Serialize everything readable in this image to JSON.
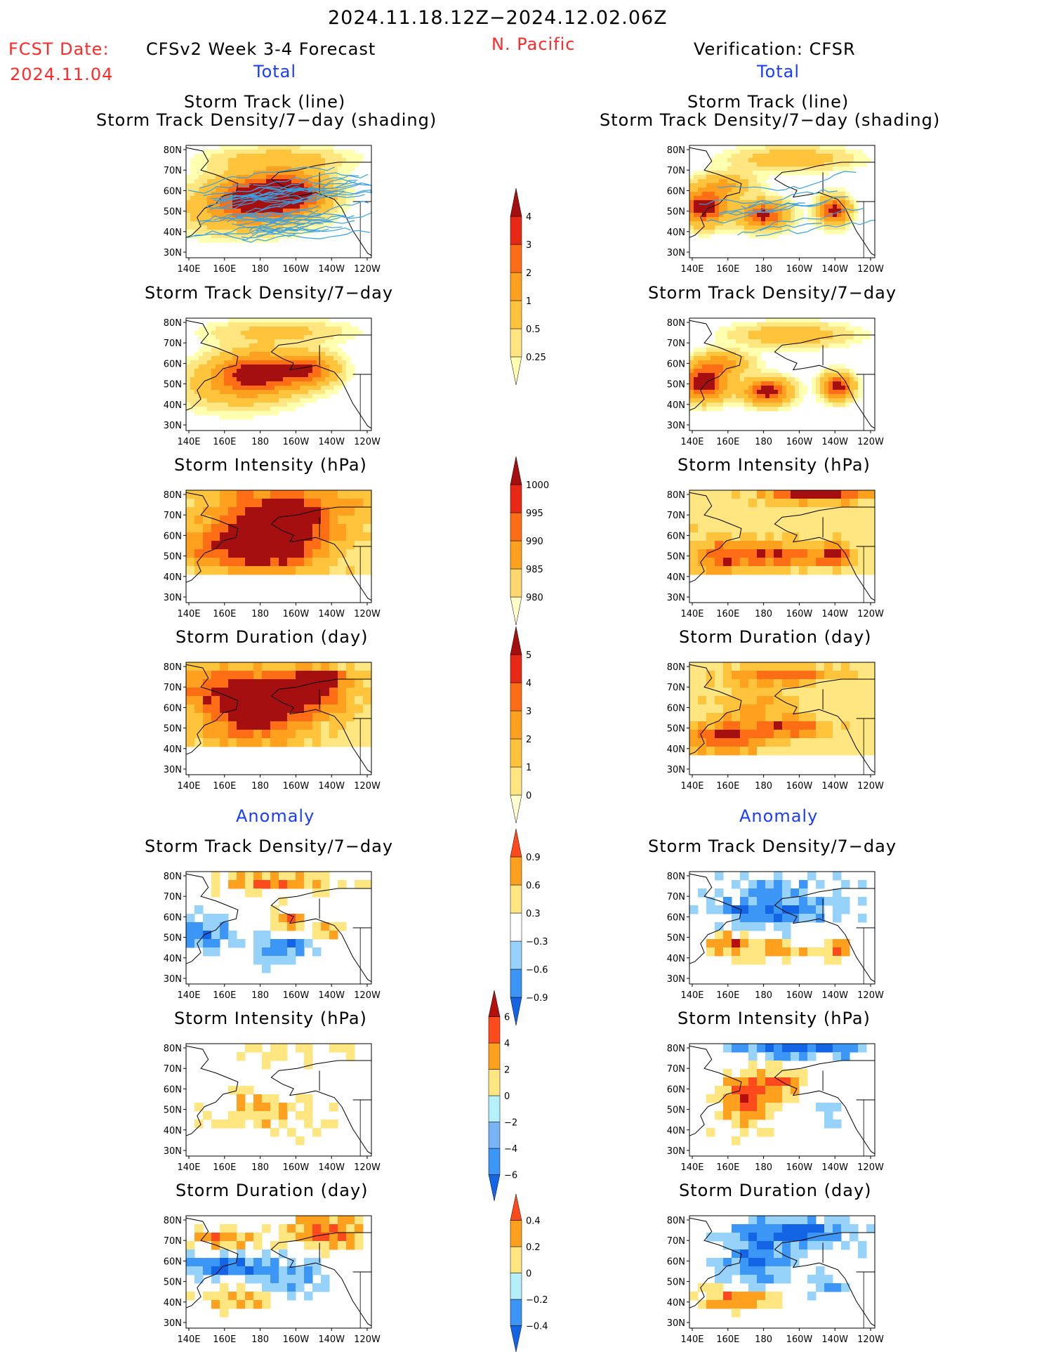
{
  "header": {
    "date_range": "2024.11.18.12Z−2024.12.02.06Z",
    "fcst_date_label": "FCST Date:",
    "fcst_date_value": "2024.11.04",
    "left_title": "CFSv2 Week 3-4 Forecast",
    "region": "N. Pacific",
    "right_title": "Verification: CFSR",
    "left_subtitle": "Total",
    "right_subtitle": "Total",
    "left_anomaly": "Anomaly",
    "right_anomaly": "Anomaly"
  },
  "panels": {
    "track": "Storm Track (line)",
    "track2": "Storm Track Density/7−day (shading)",
    "density": "Storm Track Density/7−day",
    "intensity": "Storm Intensity (hPa)",
    "duration": "Storm Duration (day)"
  },
  "axes": {
    "lon_ticks": [
      "140E",
      "160E",
      "180",
      "160W",
      "140W",
      "120W"
    ],
    "lat_ticks": [
      "80N",
      "70N",
      "60N",
      "50N",
      "40N",
      "30N"
    ]
  },
  "colorbars": [
    {
      "id": "cb-density",
      "labels": [
        "4",
        "3",
        "2",
        "1",
        "0.5",
        "0.25"
      ],
      "colors": [
        "#ffffb0",
        "#ffe680",
        "#ffc43c",
        "#ffa01e",
        "#ff6e14",
        "#e62814",
        "#a50f0f"
      ]
    },
    {
      "id": "cb-intensity",
      "labels": [
        "1000",
        "995",
        "990",
        "985",
        "980"
      ],
      "colors": [
        "#ffffc8",
        "#ffd76e",
        "#ffa01e",
        "#ff6e14",
        "#e62814",
        "#a50f0f"
      ]
    },
    {
      "id": "cb-duration",
      "labels": [
        "5",
        "4",
        "3",
        "2",
        "1",
        "0"
      ],
      "colors": [
        "#ffffd0",
        "#ffe680",
        "#ffc43c",
        "#ffa01e",
        "#ff6e14",
        "#e62814",
        "#a50f0f"
      ]
    },
    {
      "id": "cb-anom-density",
      "labels": [
        "0.9",
        "0.6",
        "0.3",
        "−0.3",
        "−0.6",
        "−0.9"
      ],
      "colors": [
        "#1464e6",
        "#3c96f5",
        "#96d2fa",
        "#ffffff",
        "#ffe680",
        "#ffa01e",
        "#ff4a1e"
      ]
    },
    {
      "id": "cb-anom-intensity",
      "labels": [
        "6",
        "4",
        "2",
        "0",
        "−2",
        "−4",
        "−6"
      ],
      "colors": [
        "#1464e6",
        "#3c96f5",
        "#78b4f5",
        "#b4f0fa",
        "#ffe680",
        "#ffa01e",
        "#ff4a1e",
        "#b40f0f"
      ]
    },
    {
      "id": "cb-anom-duration",
      "labels": [
        "0.4",
        "0.2",
        "0",
        "−0.2",
        "−0.4"
      ],
      "colors": [
        "#1464e6",
        "#3c96f5",
        "#b4f0fa",
        "#ffe680",
        "#ffa01e",
        "#ff4a1e"
      ]
    }
  ],
  "colors": {
    "ocean": "#ffffff",
    "coast": "#000000",
    "track_line": "#3aa0e0",
    "label_red": "#ff2a2a",
    "label_blue": "#1a3cff"
  },
  "chart_data": [
    {
      "type": "heatmap",
      "panel": "forecast-total-track",
      "title": "Storm Track (line) / Storm Track Density/7−day (shading)",
      "x_range": [
        "140E",
        "120W"
      ],
      "y_range": [
        "30N",
        "80N"
      ]
    },
    {
      "type": "heatmap",
      "panel": "verif-total-track",
      "title": "Storm Track (line) / Storm Track Density/7−day (shading)",
      "x_range": [
        "140E",
        "120W"
      ],
      "y_range": [
        "30N",
        "80N"
      ]
    },
    {
      "type": "heatmap",
      "panel": "forecast-total-density",
      "title": "Storm Track Density/7−day"
    },
    {
      "type": "heatmap",
      "panel": "verif-total-density",
      "title": "Storm Track Density/7−day"
    },
    {
      "type": "heatmap",
      "panel": "forecast-total-intensity",
      "title": "Storm Intensity (hPa)"
    },
    {
      "type": "heatmap",
      "panel": "verif-total-intensity",
      "title": "Storm Intensity (hPa)"
    },
    {
      "type": "heatmap",
      "panel": "forecast-total-duration",
      "title": "Storm Duration (day)"
    },
    {
      "type": "heatmap",
      "panel": "verif-total-duration",
      "title": "Storm Duration (day)"
    },
    {
      "type": "heatmap",
      "panel": "forecast-anom-density",
      "title": "Storm Track Density/7−day"
    },
    {
      "type": "heatmap",
      "panel": "verif-anom-density",
      "title": "Storm Track Density/7−day"
    },
    {
      "type": "heatmap",
      "panel": "forecast-anom-intensity",
      "title": "Storm Intensity (hPa)"
    },
    {
      "type": "heatmap",
      "panel": "verif-anom-intensity",
      "title": "Storm Intensity (hPa)"
    },
    {
      "type": "heatmap",
      "panel": "forecast-anom-duration",
      "title": "Storm Duration (day)"
    },
    {
      "type": "heatmap",
      "panel": "verif-anom-duration",
      "title": "Storm Duration (day)"
    }
  ]
}
